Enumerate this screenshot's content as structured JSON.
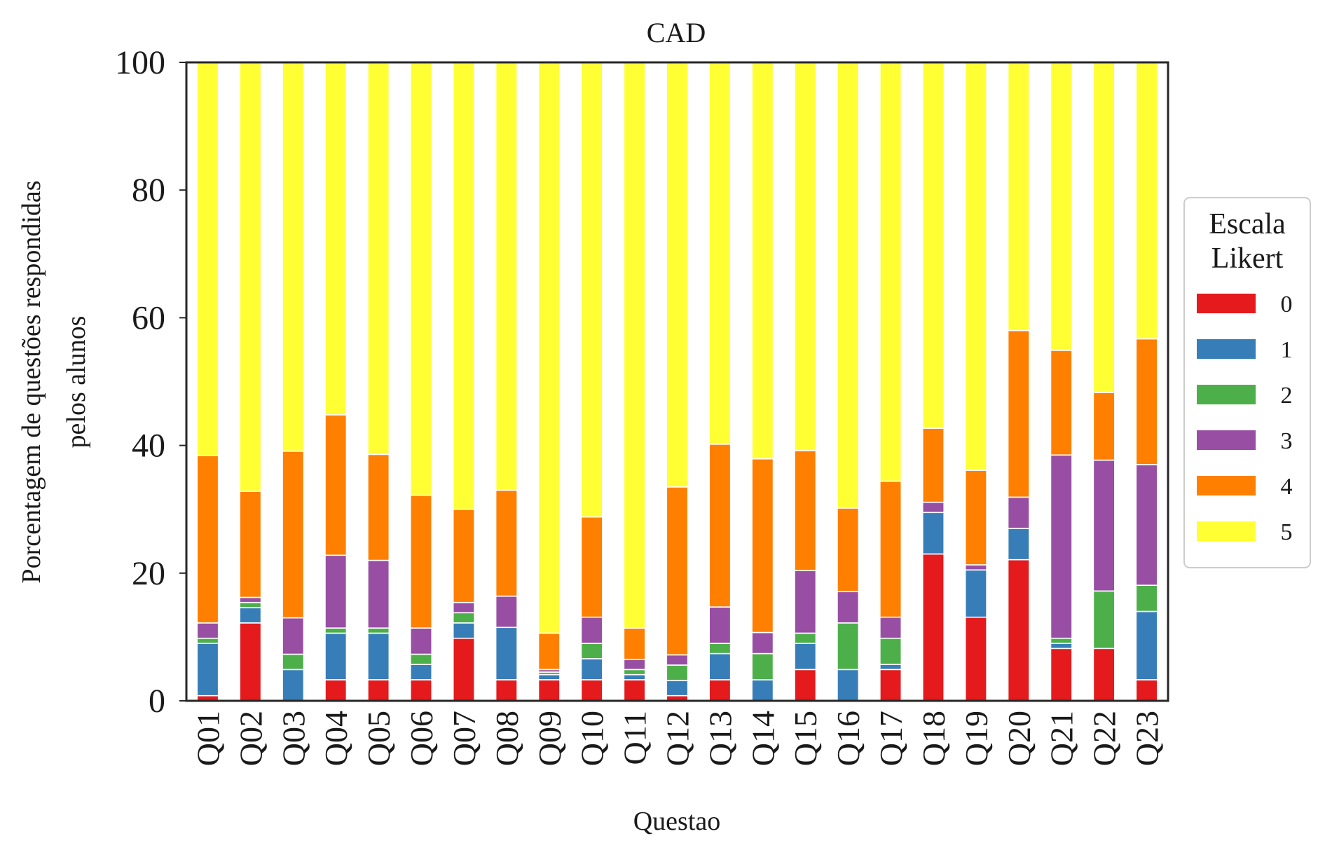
{
  "chart_data": {
    "type": "bar",
    "stacked": true,
    "title": "CAD",
    "xlabel": "Questao",
    "ylabel": [
      "Porcentagem de questões respondidas",
      "pelos alunos"
    ],
    "ylim": [
      0,
      100
    ],
    "yticks": [
      0,
      20,
      40,
      60,
      80,
      100
    ],
    "grid": false,
    "categories": [
      "Q01",
      "Q02",
      "Q03",
      "Q04",
      "Q05",
      "Q06",
      "Q07",
      "Q08",
      "Q09",
      "Q10",
      "Q11",
      "Q12",
      "Q13",
      "Q14",
      "Q15",
      "Q16",
      "Q17",
      "Q18",
      "Q19",
      "Q20",
      "Q21",
      "Q22",
      "Q23"
    ],
    "legend": {
      "title": [
        "Escala",
        "Likert"
      ],
      "placement": "center-right, outside plot"
    },
    "series": [
      {
        "name": "0",
        "color": "#e41a1c",
        "values": [
          0.8,
          12.2,
          0,
          3.3,
          3.3,
          3.3,
          9.8,
          3.3,
          3.3,
          3.3,
          3.3,
          0.8,
          3.3,
          0,
          4.9,
          0,
          4.9,
          23.0,
          13.1,
          22.1,
          8.2,
          8.2,
          3.3
        ]
      },
      {
        "name": "1",
        "color": "#377eb8",
        "values": [
          8.2,
          2.4,
          4.9,
          7.3,
          7.3,
          2.4,
          2.4,
          8.2,
          0.8,
          3.3,
          0.8,
          2.4,
          4.1,
          3.3,
          4.1,
          4.9,
          0.8,
          6.5,
          7.4,
          4.9,
          0.8,
          0,
          10.7
        ]
      },
      {
        "name": "2",
        "color": "#4daf4a",
        "values": [
          0.8,
          0.8,
          2.4,
          0.8,
          0.8,
          1.6,
          1.6,
          0,
          0.4,
          2.4,
          0.8,
          2.4,
          1.6,
          4.1,
          1.6,
          7.3,
          4.1,
          0,
          0,
          0,
          0.8,
          9.0,
          4.1
        ]
      },
      {
        "name": "3",
        "color": "#984ea3",
        "values": [
          2.4,
          0.8,
          5.7,
          11.4,
          10.6,
          4.1,
          1.6,
          4.9,
          0.4,
          4.1,
          1.6,
          1.6,
          5.7,
          3.3,
          9.8,
          4.9,
          3.3,
          1.6,
          0.8,
          4.9,
          28.7,
          20.5,
          18.9
        ]
      },
      {
        "name": "4",
        "color": "#ff7f00",
        "values": [
          26.2,
          16.6,
          26.1,
          22.0,
          16.6,
          20.8,
          14.6,
          16.6,
          5.7,
          15.7,
          4.9,
          26.3,
          25.5,
          27.2,
          18.8,
          13.1,
          21.3,
          11.6,
          14.8,
          26.1,
          16.4,
          10.6,
          19.7
        ]
      },
      {
        "name": "5",
        "color": "#ffff33",
        "values": [
          61.6,
          67.2,
          60.9,
          55.2,
          61.4,
          67.8,
          70.0,
          67.0,
          89.4,
          71.2,
          88.6,
          66.5,
          59.8,
          62.1,
          60.8,
          69.8,
          65.6,
          57.3,
          63.9,
          42.0,
          45.1,
          51.7,
          43.3
        ]
      }
    ]
  }
}
